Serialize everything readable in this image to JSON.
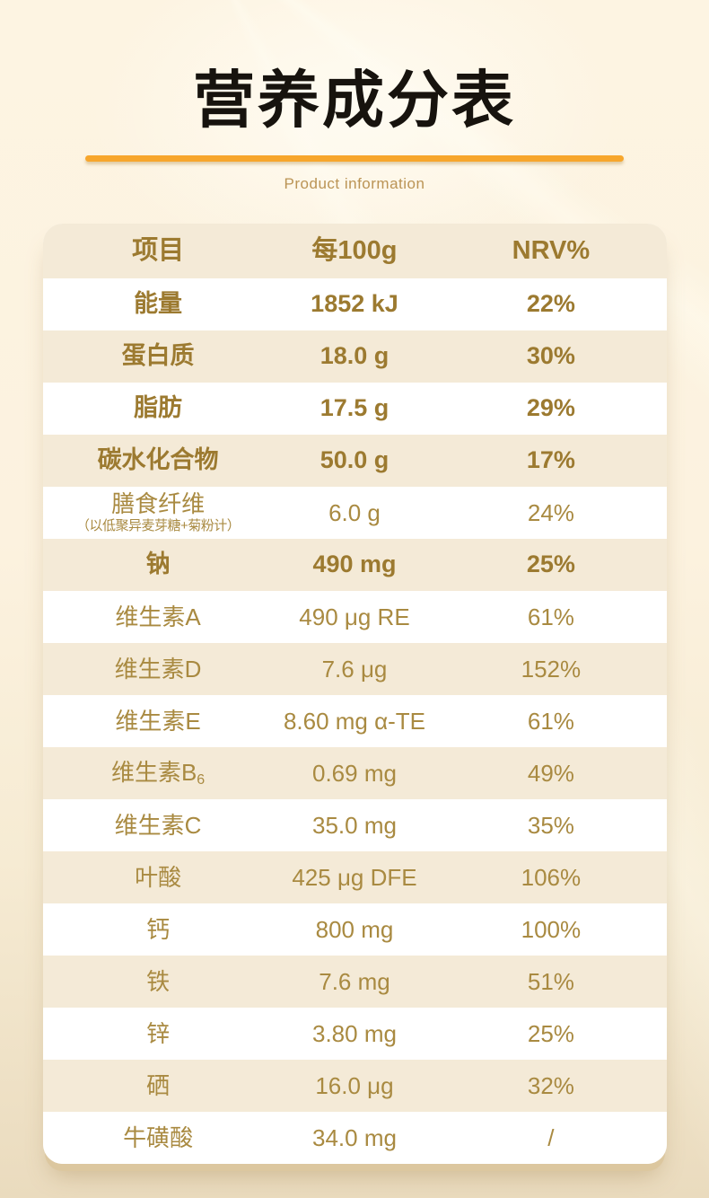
{
  "hero": {
    "title": "营养成分表",
    "subtitle": "Product information"
  },
  "table": {
    "headers": {
      "item": "项目",
      "amount": "每100g",
      "nrv": "NRV%"
    },
    "rows": [
      {
        "label": "能量",
        "value": "1852 kJ",
        "nrv": "22%",
        "bold": true
      },
      {
        "label": "蛋白质",
        "value": "18.0 g",
        "nrv": "30%",
        "bold": true
      },
      {
        "label": "脂肪",
        "value": "17.5 g",
        "nrv": "29%",
        "bold": true
      },
      {
        "label": "碳水化合物",
        "value": "50.0 g",
        "nrv": "17%",
        "bold": true
      },
      {
        "label": "膳食纤维",
        "note": "（以低聚异麦芽糖+菊粉计）",
        "value": "6.0 g",
        "nrv": "24%",
        "bold": false
      },
      {
        "label": "钠",
        "value": "490 mg",
        "nrv": "25%",
        "bold": true
      },
      {
        "label": "维生素A",
        "value": "490 μg RE",
        "nrv": "61%",
        "bold": false
      },
      {
        "label": "维生素D",
        "value": "7.6 μg",
        "nrv": "152%",
        "bold": false
      },
      {
        "label": "维生素E",
        "value": "8.60 mg α-TE",
        "nrv": "61%",
        "bold": false
      },
      {
        "label": "维生素B",
        "label_subscript": "6",
        "value": "0.69 mg",
        "nrv": "49%",
        "bold": false
      },
      {
        "label": "维生素C",
        "value": "35.0 mg",
        "nrv": "35%",
        "bold": false
      },
      {
        "label": "叶酸",
        "value": "425 μg DFE",
        "nrv": "106%",
        "bold": false
      },
      {
        "label": "钙",
        "value": "800 mg",
        "nrv": "100%",
        "bold": false
      },
      {
        "label": "铁",
        "value": "7.6 mg",
        "nrv": "51%",
        "bold": false
      },
      {
        "label": "锌",
        "value": "3.80 mg",
        "nrv": "25%",
        "bold": false
      },
      {
        "label": "硒",
        "value": "16.0 μg",
        "nrv": "32%",
        "bold": false
      },
      {
        "label": "牛磺酸",
        "value": "34.0 mg",
        "nrv": "/",
        "bold": false
      }
    ]
  },
  "colors": {
    "accent-line": "#f7a62c",
    "title-ink": "#17130e",
    "gold-bold": "#9c7a30",
    "gold-regular": "#a98a41",
    "subtitle-gold": "#bb9455",
    "row-beige": "#f4ead7",
    "card-white": "#ffffff",
    "page-top": "#fdf4e2",
    "page-bottom": "#eadbbe"
  }
}
